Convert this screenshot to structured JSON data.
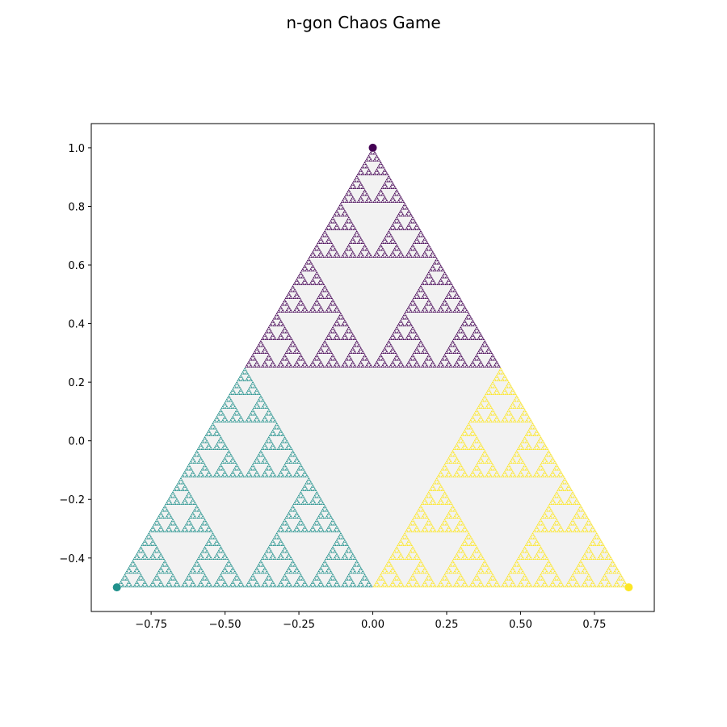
{
  "chart_data": {
    "type": "scatter",
    "title": "n-gon Chaos Game",
    "xlabel": "",
    "ylabel": "",
    "xlim": [
      -0.9526,
      0.9526
    ],
    "ylim": [
      -0.5825,
      1.0825
    ],
    "x_ticks": [
      -0.75,
      -0.5,
      -0.25,
      0.0,
      0.25,
      0.5,
      0.75
    ],
    "x_tick_labels": [
      "−0.75",
      "−0.50",
      "−0.25",
      "0.00",
      "0.25",
      "0.50",
      "0.75"
    ],
    "y_ticks": [
      -0.4,
      -0.2,
      0.0,
      0.2,
      0.4,
      0.6,
      0.8,
      1.0
    ],
    "y_tick_labels": [
      "−0.4",
      "−0.2",
      "0.0",
      "0.2",
      "0.4",
      "0.6",
      "0.8",
      "1.0"
    ],
    "grid": false,
    "colormap": "viridis",
    "vertices": [
      {
        "x": 0.0,
        "y": 1.0,
        "color": "#440154"
      },
      {
        "x": -0.866,
        "y": -0.5,
        "color": "#21918c"
      },
      {
        "x": 0.866,
        "y": -0.5,
        "color": "#fde725"
      }
    ],
    "background_triangle_color": "#f2f2f2",
    "fractal_depth": 7
  }
}
